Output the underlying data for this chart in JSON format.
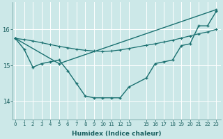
{
  "xlabel": "Humidex (Indice chaleur)",
  "bg_color": "#cce8e8",
  "grid_color": "#ffffff",
  "line_color": "#1a7070",
  "x_ticks": [
    0,
    1,
    2,
    3,
    4,
    5,
    6,
    7,
    8,
    9,
    10,
    11,
    12,
    13,
    15,
    16,
    17,
    18,
    19,
    20,
    21,
    22,
    23
  ],
  "x_tick_labels": [
    "0",
    "1",
    "2",
    "3",
    "4",
    "5",
    "6",
    "7",
    "8",
    "9",
    "10",
    "11",
    "12",
    "13",
    "15",
    "16",
    "17",
    "18",
    "19",
    "20",
    "21",
    "22",
    "23"
  ],
  "xlim": [
    -0.3,
    23.5
  ],
  "ylim": [
    13.5,
    16.75
  ],
  "y_ticks": [
    14,
    15,
    16
  ],
  "line1_x": [
    0,
    5,
    23
  ],
  "line1_y": [
    15.75,
    15.05,
    16.55
  ],
  "line2_x": [
    0,
    1,
    2,
    3,
    4,
    5,
    6,
    7,
    8,
    9,
    10,
    11,
    12,
    13,
    15,
    16,
    17,
    18,
    19,
    20,
    21,
    22,
    23
  ],
  "line2_y": [
    15.75,
    15.72,
    15.68,
    15.63,
    15.58,
    15.53,
    15.49,
    15.45,
    15.42,
    15.4,
    15.39,
    15.4,
    15.43,
    15.47,
    15.56,
    15.6,
    15.65,
    15.7,
    15.76,
    15.82,
    15.88,
    15.93,
    16.0
  ],
  "line3_x": [
    0,
    1,
    2,
    3,
    4,
    5,
    6,
    7,
    8,
    9,
    10,
    11,
    12,
    13,
    15,
    16,
    17,
    18,
    19,
    20,
    21,
    22,
    23
  ],
  "line3_y": [
    15.75,
    15.45,
    14.95,
    15.05,
    15.1,
    15.15,
    14.85,
    14.5,
    14.15,
    14.1,
    14.1,
    14.1,
    14.1,
    14.4,
    14.65,
    15.05,
    15.1,
    15.15,
    15.55,
    15.6,
    16.1,
    16.1,
    16.5
  ]
}
